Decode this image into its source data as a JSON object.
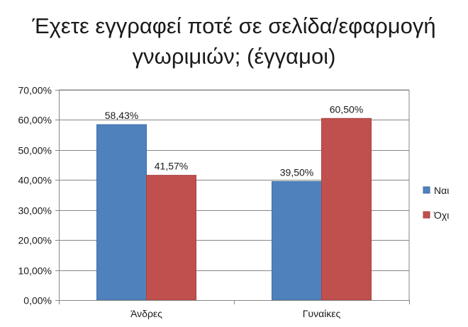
{
  "chart_data": {
    "type": "bar",
    "title_lines": [
      "Έχετε εγγραφεί ποτέ σε σελίδα/εφαρμογή",
      "γνωριμιών; (έγγαμοι)"
    ],
    "categories": [
      "Άνδρες",
      "Γυναίκες"
    ],
    "series": [
      {
        "name": "Ναι",
        "values": [
          58.43,
          39.5
        ],
        "labels": [
          "58,43%",
          "39,50%"
        ],
        "color": "#4f81bd",
        "edge": "#3d6ea6"
      },
      {
        "name": "Όχι",
        "values": [
          41.57,
          60.5
        ],
        "labels": [
          "41,57%",
          "60,50%"
        ],
        "color": "#c0504d",
        "edge": "#a84340"
      }
    ],
    "ylim": [
      0,
      70
    ],
    "yticks": [
      0,
      10,
      20,
      30,
      40,
      50,
      60,
      70
    ],
    "ytick_labels": [
      "0,00%",
      "10,00%",
      "20,00%",
      "30,00%",
      "40,00%",
      "50,00%",
      "60,00%",
      "70,00%"
    ],
    "grid": true,
    "legend_position": "right",
    "gridline_color": "#868686",
    "axis_color": "#868686"
  }
}
